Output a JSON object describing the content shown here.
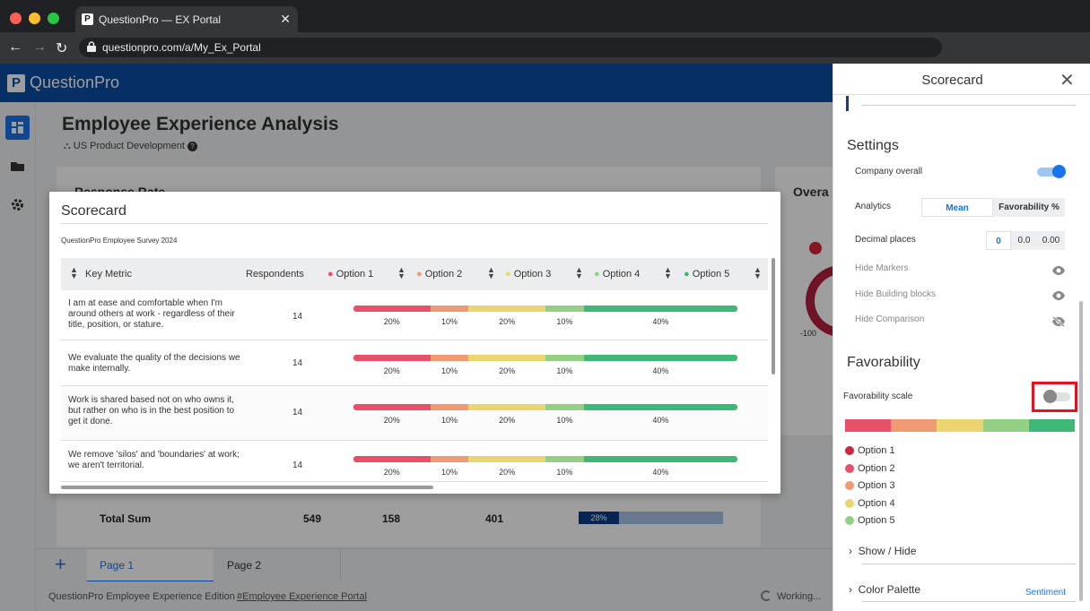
{
  "browser": {
    "tab_title": "QuestionPro — EX Portal",
    "tab_favicon": "P",
    "url": "questionpro.com/a/My_Ex_Portal"
  },
  "app": {
    "logo_letter": "P",
    "logo_name": "QuestionPro",
    "page_title": "Employee Experience Analysis",
    "page_subtitle": "US Product Development",
    "bg_response_rate": "Response Rate",
    "bg_overall": "Overa",
    "bg_gauge_min": "-100",
    "totals": {
      "label": "Total Sum",
      "v1": "549",
      "v2": "158",
      "v3": "401",
      "bar_pct": "28%",
      "bar_fill": 0.28
    },
    "tabs": [
      {
        "label": "Page 1"
      },
      {
        "label": "Page 2"
      }
    ],
    "footer_left": "QuestionPro Employee Experience Edition",
    "footer_link": "#Employee Experience Portal",
    "footer_status": "Working..."
  },
  "modal": {
    "title": "Scorecard",
    "survey": "QuestionPro Employee Survey 2024",
    "columns": {
      "key_metric": "Key Metric",
      "respondents": "Respondents",
      "opt1": "Option 1",
      "opt2": "Option 2",
      "opt3": "Option 3",
      "opt4": "Option 4",
      "opt5": "Option 5"
    },
    "colors": [
      "#e8506a",
      "#ef9a72",
      "#ecd470",
      "#93cf84",
      "#3fb877"
    ],
    "rows": [
      {
        "question": "I am at ease and comfortable when I'm around others at work - regardless of their title, position, or stature.",
        "respondents": "14",
        "shares": [
          0.2,
          0.1,
          0.2,
          0.1,
          0.4
        ],
        "labels": [
          "20%",
          "10%",
          "20%",
          "10%",
          "40%"
        ]
      },
      {
        "question": "We evaluate the quality of the decisions we make internally.",
        "respondents": "14",
        "shares": [
          0.2,
          0.1,
          0.2,
          0.1,
          0.4
        ],
        "labels": [
          "20%",
          "10%",
          "20%",
          "10%",
          "40%"
        ]
      },
      {
        "question": "Work is shared based not on who owns it, but rather on who is in the best position to get it done.",
        "respondents": "14",
        "shares": [
          0.2,
          0.1,
          0.2,
          0.1,
          0.4
        ],
        "labels": [
          "20%",
          "10%",
          "20%",
          "10%",
          "40%"
        ]
      },
      {
        "question": "We remove 'silos' and 'boundaries' at work; we aren't territorial.",
        "respondents": "14",
        "shares": [
          0.2,
          0.1,
          0.2,
          0.1,
          0.4
        ],
        "labels": [
          "20%",
          "10%",
          "20%",
          "10%",
          "40%"
        ]
      }
    ]
  },
  "panel": {
    "title": "Scorecard",
    "settings_heading": "Settings",
    "company_overall": "Company overall",
    "analytics": "Analytics",
    "mean": "Mean",
    "favorability_pct": "Favorability %",
    "decimal_places": "Decimal places",
    "dec0": "0",
    "dec1": "0.0",
    "dec2": "0.00",
    "hide_markers": "Hide Markers",
    "hide_blocks": "Hide Building blocks",
    "hide_comparison": "Hide Comparison",
    "favorability_heading": "Favorability",
    "favorability_scale": "Favorability scale",
    "scale_colors": [
      "#e8506a",
      "#ef9a72",
      "#ecd470",
      "#93cf84",
      "#3fb877"
    ],
    "legend": [
      {
        "label": "Option 1",
        "color": "#c8283e"
      },
      {
        "label": "Option 2",
        "color": "#e8506a"
      },
      {
        "label": "Option 3",
        "color": "#ef9a72"
      },
      {
        "label": "Option 4",
        "color": "#ecd470"
      },
      {
        "label": "Option 5",
        "color": "#93cf84"
      }
    ],
    "show_hide": "Show / Hide",
    "color_palette": "Color Palette",
    "sentiment": "Sentiment"
  }
}
